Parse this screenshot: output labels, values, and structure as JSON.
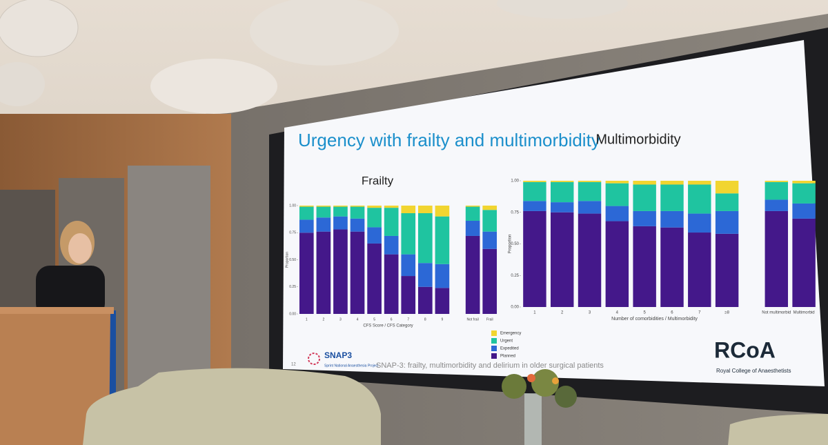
{
  "slide": {
    "title": "Urgency with frailty and multimorbidity",
    "footer_text": "SNAP-3: frailty, multimorbidity and delirium in older surgical patients",
    "page_number": "12",
    "snap_logo": "SNAP3",
    "snap_tagline": "Sprint National Anaesthesia Project",
    "rcoa_logo": "RCoA",
    "rcoa_name": "Royal College of Anaesthetists"
  },
  "chart_data": [
    {
      "type": "stacked-bar",
      "title": "Frailty",
      "x_label": "CFS Score / CFS Category",
      "y_label": "Proportion",
      "categories": [
        "1",
        "2",
        "3",
        "4",
        "5",
        "6",
        "7",
        "8",
        "9",
        "Not frail",
        "Frail"
      ],
      "ylim": [
        0,
        1
      ],
      "yticks": [
        {
          "value": 0,
          "label": "0.00"
        },
        {
          "value": 0.25,
          "label": "0.25"
        },
        {
          "value": 0.5,
          "label": "0.50"
        },
        {
          "value": 0.75,
          "label": "0.75"
        },
        {
          "value": 1,
          "label": "1.00"
        }
      ],
      "legend": true,
      "series": [
        {
          "name": "Planned",
          "color": "#44188a",
          "values": [
            0.75,
            0.76,
            0.78,
            0.76,
            0.65,
            0.55,
            0.35,
            0.25,
            0.24,
            0.72,
            0.6
          ]
        },
        {
          "name": "Expedited",
          "color": "#2c68d6",
          "values": [
            0.12,
            0.13,
            0.12,
            0.12,
            0.15,
            0.17,
            0.2,
            0.22,
            0.22,
            0.14,
            0.16
          ]
        },
        {
          "name": "Urgent",
          "color": "#1fc4a0",
          "values": [
            0.12,
            0.1,
            0.09,
            0.11,
            0.18,
            0.26,
            0.38,
            0.46,
            0.44,
            0.13,
            0.2
          ]
        },
        {
          "name": "Emergency",
          "color": "#f1d530",
          "values": [
            0.01,
            0.01,
            0.01,
            0.01,
            0.02,
            0.02,
            0.07,
            0.07,
            0.1,
            0.01,
            0.04
          ]
        }
      ]
    },
    {
      "type": "stacked-bar",
      "title": "Multimorbidity",
      "x_label": "Number of comorbidities / Multimorbidity",
      "y_label": "Proportion",
      "categories": [
        "1",
        "2",
        "3",
        "4",
        "5",
        "6",
        "7",
        "≥8",
        "Not multimorbid",
        "Multimorbid"
      ],
      "ylim": [
        0,
        1
      ],
      "yticks": [
        {
          "value": 0,
          "label": "0.00"
        },
        {
          "value": 0.25,
          "label": "0.25"
        },
        {
          "value": 0.5,
          "label": "0.50"
        },
        {
          "value": 0.75,
          "label": "0.75"
        },
        {
          "value": 1,
          "label": "1.00"
        }
      ],
      "legend": false,
      "series": [
        {
          "color": "#44188a",
          "values": [
            0.76,
            0.75,
            0.74,
            0.68,
            0.64,
            0.63,
            0.59,
            0.58,
            0.76,
            0.7
          ]
        },
        {
          "color": "#2c68d6",
          "values": [
            0.08,
            0.08,
            0.1,
            0.12,
            0.12,
            0.13,
            0.15,
            0.18,
            0.09,
            0.12
          ]
        },
        {
          "color": "#1fc4a0",
          "values": [
            0.15,
            0.16,
            0.15,
            0.18,
            0.21,
            0.21,
            0.23,
            0.14,
            0.14,
            0.16
          ]
        },
        {
          "color": "#f1d530",
          "values": [
            0.01,
            0.01,
            0.01,
            0.02,
            0.03,
            0.03,
            0.03,
            0.1,
            0.01,
            0.02
          ]
        }
      ]
    }
  ]
}
